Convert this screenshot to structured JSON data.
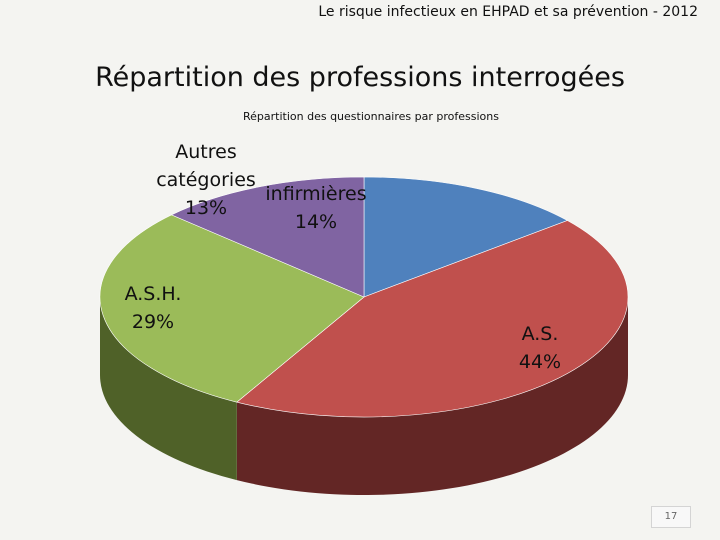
{
  "header": {
    "text": "Le risque infectieux en EHPAD et sa prévention - 2012"
  },
  "slide": {
    "title": "Répartition des professions interrogées",
    "page_number": "17"
  },
  "chart_data": {
    "type": "pie",
    "title": "Répartition des questionnaires par professions",
    "three_d": true,
    "legend": "none",
    "slices": [
      {
        "label": [
          "infirmières",
          "14%"
        ],
        "value": 14,
        "color": "#4f81bd",
        "side_color": "#385e8c"
      },
      {
        "label": [
          "A.S.",
          "44%"
        ],
        "value": 44,
        "color": "#c0504d",
        "side_color": "#632625"
      },
      {
        "label": [
          "A.S.H.",
          "29%"
        ],
        "value": 29,
        "color": "#9bbb59",
        "side_color": "#4f6128"
      },
      {
        "label": [
          "Autres",
          "catégories",
          "13%"
        ],
        "value": 13,
        "color": "#8064a2",
        "side_color": "#4f3c6a"
      }
    ]
  }
}
